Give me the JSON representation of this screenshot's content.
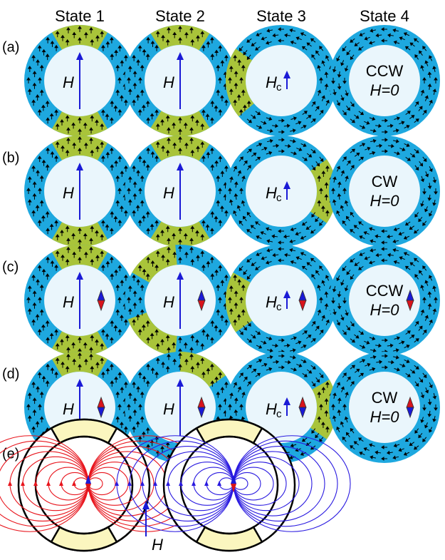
{
  "columns": [
    "State 1",
    "State 2",
    "State 3",
    "State 4"
  ],
  "rows": [
    {
      "label": "(a)",
      "cells": [
        {
          "field": "H"
        },
        {
          "field": "H"
        },
        {
          "field": "H",
          "subscript": "c"
        },
        {
          "chirality": "CCW",
          "field": "H=0"
        }
      ]
    },
    {
      "label": "(b)",
      "cells": [
        {
          "field": "H"
        },
        {
          "field": "H"
        },
        {
          "field": "H",
          "subscript": "c"
        },
        {
          "chirality": "CW",
          "field": "H=0"
        }
      ]
    },
    {
      "label": "(c)",
      "cells": [
        {
          "field": "H"
        },
        {
          "field": "H"
        },
        {
          "field": "H",
          "subscript": "c"
        },
        {
          "chirality": "CCW",
          "field": "H=0"
        }
      ]
    },
    {
      "label": "(d)",
      "cells": [
        {
          "field": "H"
        },
        {
          "field": "H"
        },
        {
          "field": "H",
          "subscript": "c"
        },
        {
          "chirality": "CW",
          "field": "H=0"
        }
      ]
    }
  ],
  "panel_e": {
    "label": "(e)",
    "field": "H"
  }
}
